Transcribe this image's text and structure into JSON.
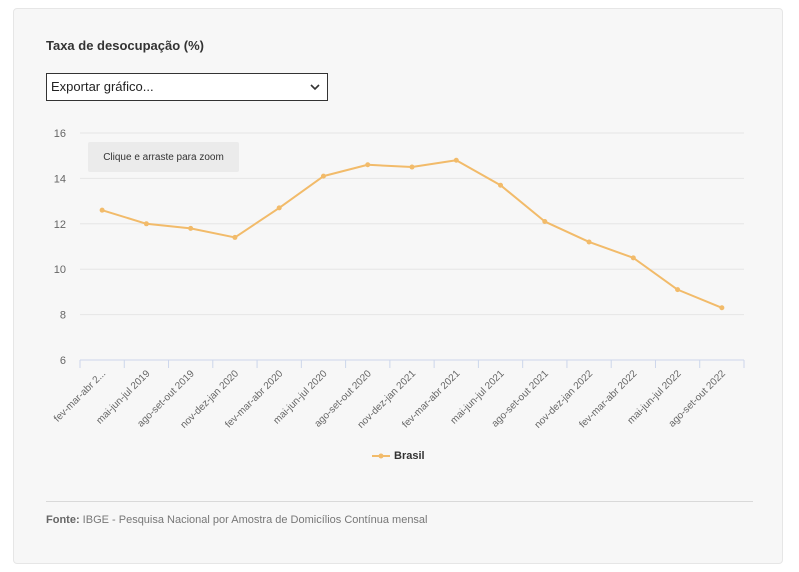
{
  "title": "Taxa de desocupação (%)",
  "export_select": {
    "value": "Exportar gráfico..."
  },
  "zoom_hint": "Clique e arraste para zoom",
  "source": {
    "label": "Fonte:",
    "text": "IBGE - Pesquisa Nacional por Amostra de Domicílios Contínua mensal"
  },
  "colors": {
    "series": "#f2bb6a",
    "grid": "#e6e6e6",
    "axis": "#ccd6eb"
  },
  "chart_data": {
    "type": "line",
    "title": "Taxa de desocupação (%)",
    "categories": [
      "fev-mar-abr 2...",
      "mai-jun-jul 2019",
      "ago-set-out 2019",
      "nov-dez-jan 2020",
      "fev-mar-abr 2020",
      "mai-jun-jul 2020",
      "ago-set-out 2020",
      "nov-dez-jan 2021",
      "fev-mar-abr 2021",
      "mai-jun-jul 2021",
      "ago-set-out 2021",
      "nov-dez-jan 2022",
      "fev-mar-abr 2022",
      "mai-jun-jul 2022",
      "ago-set-out 2022"
    ],
    "series": [
      {
        "name": "Brasil",
        "values": [
          12.6,
          12.0,
          11.8,
          11.4,
          12.7,
          14.1,
          14.6,
          14.5,
          14.8,
          13.7,
          12.1,
          11.2,
          10.5,
          9.1,
          8.3
        ]
      }
    ],
    "ylim": [
      6,
      16
    ],
    "yticks": [
      "6",
      "8",
      "10",
      "12",
      "14",
      "16"
    ],
    "grid": true,
    "legend": "bottom-center"
  }
}
